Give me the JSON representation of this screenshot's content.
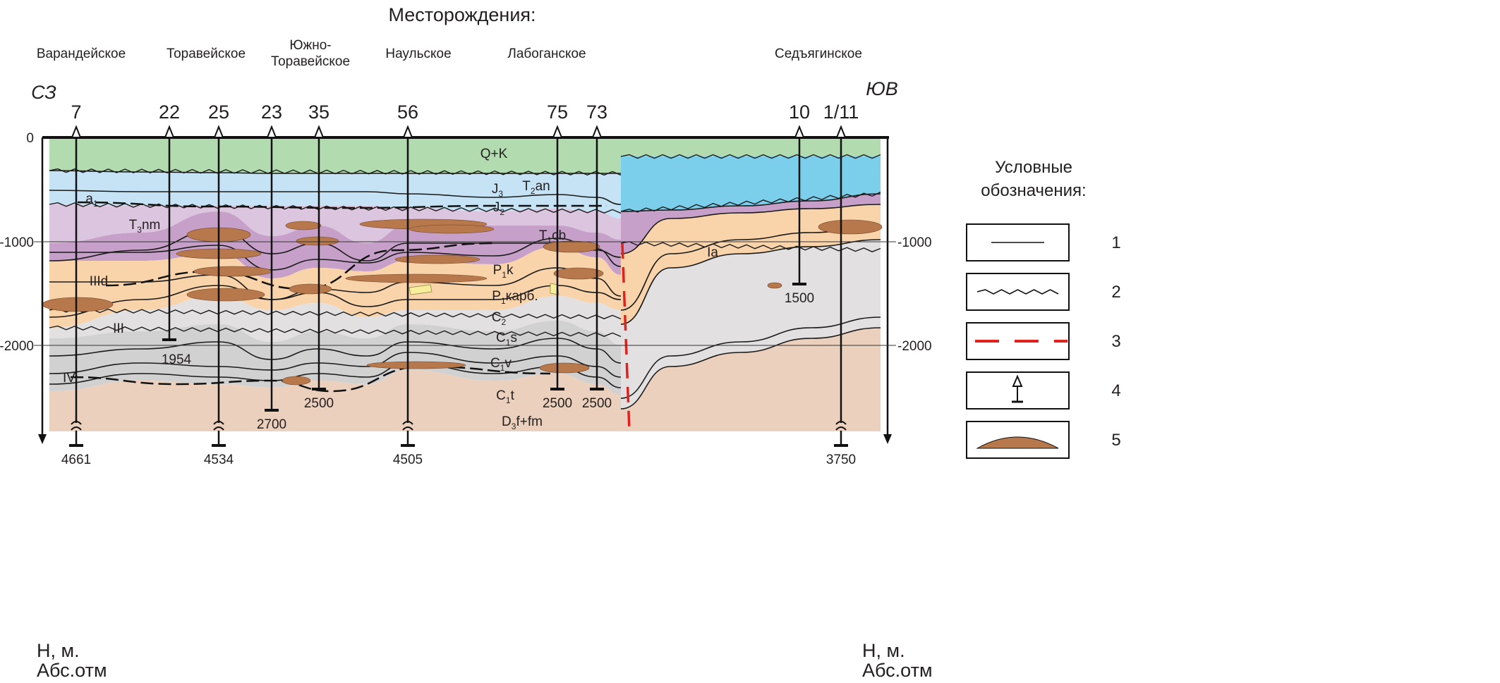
{
  "title": "Месторождения:",
  "fields": [
    "Варандейское",
    "Торавейское",
    "Южно-",
    "Торавейское",
    "Наульское",
    "Лабоганское",
    "Седъягинское"
  ],
  "directions": {
    "left": "СЗ",
    "right": "ЮВ"
  },
  "depth_axis": {
    "ticks_left": [
      "0",
      "-1000",
      "-2000"
    ],
    "ticks_right": [
      "-1000",
      "-2000"
    ],
    "unit_line1": "Н, м.",
    "unit_line2": "Абс.отм"
  },
  "wells": [
    {
      "name": "7",
      "bottom": "4661"
    },
    {
      "name": "22",
      "bottom": "1954"
    },
    {
      "name": "25",
      "bottom": "4534"
    },
    {
      "name": "23",
      "bottom": "2700"
    },
    {
      "name": "35",
      "bottom": "2500"
    },
    {
      "name": "56",
      "bottom": "4505"
    },
    {
      "name": "75",
      "bottom": "2500"
    },
    {
      "name": "73",
      "bottom": "2500"
    },
    {
      "name": "10",
      "bottom": "1500"
    },
    {
      "name": "1/11",
      "bottom": "3750"
    }
  ],
  "formations": [
    {
      "b": "Q+K",
      "s": "",
      "r": ""
    },
    {
      "b": "J",
      "s": "3",
      "r": ""
    },
    {
      "b": "T",
      "s": "2",
      "r": "an"
    },
    {
      "b": "a",
      "s": "1",
      "r": ""
    },
    {
      "b": "J",
      "s": "2",
      "r": ""
    },
    {
      "b": "T",
      "s": "3",
      "r": "nm"
    },
    {
      "b": "T",
      "s": "1",
      "r": "cb"
    },
    {
      "b": "Ia",
      "s": "",
      "r": ""
    },
    {
      "b": "IIId",
      "s": "",
      "r": ""
    },
    {
      "b": "P",
      "s": "1",
      "r": "k"
    },
    {
      "b": "P",
      "s": "1",
      "r": "карб."
    },
    {
      "b": "C",
      "s": "2",
      "r": ""
    },
    {
      "b": "III",
      "s": "",
      "r": ""
    },
    {
      "b": "C",
      "s": "1",
      "r": "s"
    },
    {
      "b": "C",
      "s": "1",
      "r": "v"
    },
    {
      "b": "IV",
      "s": "",
      "r": ""
    },
    {
      "b": "C",
      "s": "1",
      "r": "t"
    },
    {
      "b": "D",
      "s": "3",
      "r": "f+fm"
    }
  ],
  "legend": {
    "title_line1": "Условные",
    "title_line2": "обозначения:",
    "items": [
      "1",
      "2",
      "3",
      "4",
      "5"
    ]
  },
  "colors": {
    "quaternary_cretaceous": "#b2dbb0",
    "jurassic": "#c5e3f5",
    "jurassic_lower": "#a6d8ee",
    "jurassic_right": "#7ccfeb",
    "triassic_upper": "#dcc6df",
    "triassic_lower": "#c6a0c8",
    "permian": "#f9d4aa",
    "carboniferous_upper": "#e2e0e0",
    "carboniferous_lower": "#d2d1d2",
    "devonian": "#ebd0bd",
    "lens": "#b7784b",
    "fault": "#e0221f",
    "yellow_body": "#f6ee9a"
  }
}
